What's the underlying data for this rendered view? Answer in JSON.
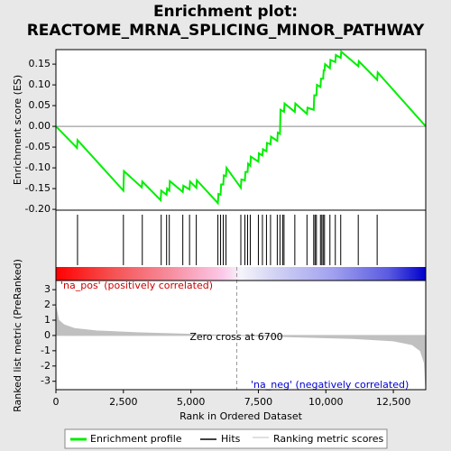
{
  "chart_data": [
    {
      "type": "line",
      "title": "Enrichment plot:",
      "subtitle": "REACTOME_MRNA_SPLICING_MINOR_PATHWAY",
      "ylabel": "Enrichment score (ES)",
      "xlim": [
        0,
        13700
      ],
      "ylim": [
        -0.202,
        0.185
      ],
      "yticks": [
        {
          "value": -0.2,
          "label": "-0.20"
        },
        {
          "value": -0.15,
          "label": "-0.15"
        },
        {
          "value": -0.1,
          "label": "-0.10"
        },
        {
          "value": -0.05,
          "label": "-0.05"
        },
        {
          "value": 0,
          "label": "0.00"
        },
        {
          "value": 0.05,
          "label": "0.05"
        },
        {
          "value": 0.1,
          "label": "0.10"
        },
        {
          "value": 0.15,
          "label": "0.15"
        }
      ],
      "x": [
        0,
        780,
        800,
        2500,
        2520,
        3180,
        3200,
        3880,
        3900,
        4100,
        4120,
        4200,
        4220,
        4700,
        4720,
        4950,
        4970,
        5200,
        5220,
        6000,
        6020,
        6100,
        6120,
        6200,
        6220,
        6300,
        6320,
        6850,
        6870,
        7000,
        7020,
        7100,
        7120,
        7200,
        7220,
        7500,
        7520,
        7650,
        7670,
        7800,
        7820,
        7950,
        7970,
        8200,
        8220,
        8300,
        8320,
        8450,
        8470,
        8850,
        8870,
        9300,
        9320,
        9550,
        9570,
        9650,
        9670,
        9800,
        9820,
        9900,
        9920,
        9950,
        9970,
        10150,
        10170,
        10350,
        10370,
        10550,
        10570,
        11200,
        11220,
        11900,
        11920,
        13700
      ],
      "series": [
        {
          "name": "Enrichment profile",
          "color": "#00ee00",
          "values": [
            0,
            -0.052,
            -0.033,
            -0.155,
            -0.108,
            -0.147,
            -0.133,
            -0.178,
            -0.155,
            -0.165,
            -0.15,
            -0.155,
            -0.132,
            -0.158,
            -0.143,
            -0.152,
            -0.133,
            -0.148,
            -0.13,
            -0.185,
            -0.163,
            -0.165,
            -0.14,
            -0.14,
            -0.118,
            -0.12,
            -0.1,
            -0.148,
            -0.128,
            -0.13,
            -0.11,
            -0.11,
            -0.09,
            -0.095,
            -0.073,
            -0.085,
            -0.065,
            -0.07,
            -0.055,
            -0.06,
            -0.04,
            -0.043,
            -0.025,
            -0.035,
            -0.015,
            -0.018,
            0.04,
            0.035,
            0.055,
            0.035,
            0.055,
            0.03,
            0.045,
            0.04,
            0.075,
            0.075,
            0.1,
            0.095,
            0.115,
            0.115,
            0.135,
            0.135,
            0.15,
            0.14,
            0.16,
            0.155,
            0.172,
            0.165,
            0.18,
            0.145,
            0.157,
            0.112,
            0.13,
            0
          ]
        }
      ],
      "hits": {
        "name": "Hits",
        "color": "#000000",
        "x": [
          800,
          2500,
          3200,
          3900,
          4100,
          4200,
          4700,
          4950,
          5200,
          6000,
          6100,
          6200,
          6300,
          6850,
          7000,
          7100,
          7200,
          7500,
          7650,
          7800,
          7950,
          8200,
          8300,
          8400,
          8450,
          8850,
          9300,
          9550,
          9600,
          9650,
          9800,
          9850,
          9900,
          9950,
          10150,
          10350,
          10550,
          11200,
          11900
        ]
      }
    },
    {
      "type": "area",
      "ylabel": "Ranked list metric (PreRanked)",
      "xlabel": "Rank in Ordered Dataset",
      "xlim": [
        0,
        13700
      ],
      "xticks": [
        0,
        {
          "value": 2500,
          "label": "2,500"
        },
        {
          "value": 5000,
          "label": "5,000"
        },
        {
          "value": 7500,
          "label": "7,500"
        },
        {
          "value": 10000,
          "label": "10,000"
        },
        {
          "value": 12500,
          "label": "12,500"
        }
      ],
      "ylim": [
        -3.55,
        3.6
      ],
      "yticks": [
        -3,
        -2,
        -1,
        0,
        1,
        2,
        3
      ],
      "x": [
        0,
        100,
        300,
        700,
        1500,
        3000,
        5000,
        6700,
        9000,
        11000,
        12500,
        13200,
        13500,
        13650,
        13700
      ],
      "series": [
        {
          "name": "Ranking metric scores",
          "color": "#c0c0c0",
          "values": [
            1.9,
            1.0,
            0.7,
            0.45,
            0.3,
            0.18,
            0.08,
            0,
            -0.1,
            -0.2,
            -0.35,
            -0.6,
            -1.0,
            -1.8,
            -3.4
          ]
        }
      ],
      "annotations": [
        "'na_pos' (positively correlated)",
        "Zero cross at 6700",
        "'na_neg' (negatively correlated)"
      ]
    }
  ]
}
